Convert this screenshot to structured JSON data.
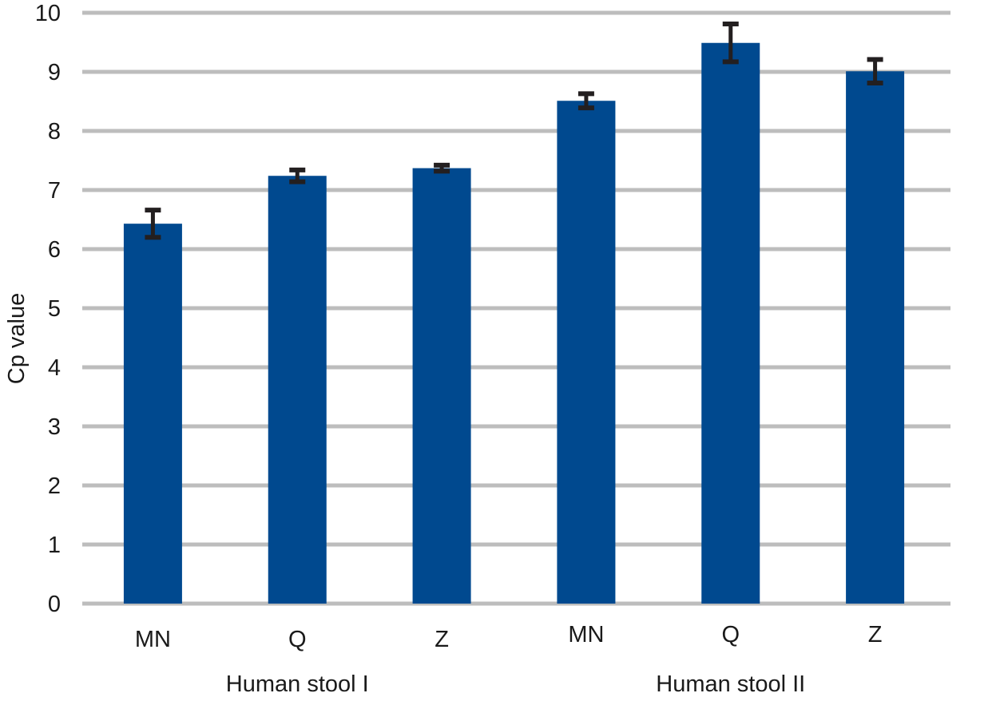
{
  "chart_data": {
    "type": "bar",
    "title": "",
    "xlabel": "",
    "ylabel": "Cp value",
    "ylim": [
      0,
      10
    ],
    "yticks": [
      0,
      1,
      2,
      3,
      4,
      5,
      6,
      7,
      8,
      9,
      10
    ],
    "grid": true,
    "legend": "none",
    "groups": [
      "Human stool I",
      "Human stool II"
    ],
    "categories": [
      "MN",
      "Q",
      "Z",
      "MN",
      "Q",
      "Z"
    ],
    "category_group": [
      0,
      0,
      0,
      1,
      1,
      1
    ],
    "values": [
      6.43,
      7.24,
      7.37,
      8.51,
      9.49,
      9.01
    ],
    "errors": [
      0.23,
      0.1,
      0.05,
      0.12,
      0.32,
      0.2
    ],
    "colors": {
      "bar": "#00498F",
      "error_bar": "#231F20",
      "grid": "#BDBDBD"
    }
  }
}
